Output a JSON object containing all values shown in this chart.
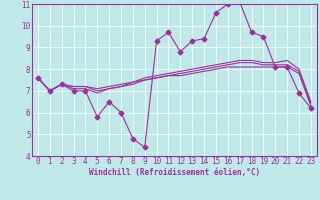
{
  "xlabel": "Windchill (Refroidissement éolien,°C)",
  "background_color": "#c0e8e8",
  "grid_color": "#ffffff",
  "line_color": "#993399",
  "spine_color": "#993399",
  "tick_color": "#993399",
  "xlim": [
    -0.5,
    23.5
  ],
  "ylim": [
    4,
    11
  ],
  "yticks": [
    4,
    5,
    6,
    7,
    8,
    9,
    10,
    11
  ],
  "xticks": [
    0,
    1,
    2,
    3,
    4,
    5,
    6,
    7,
    8,
    9,
    10,
    11,
    12,
    13,
    14,
    15,
    16,
    17,
    18,
    19,
    20,
    21,
    22,
    23
  ],
  "series": [
    [
      7.6,
      7.0,
      7.3,
      7.0,
      7.0,
      5.8,
      6.5,
      6.0,
      4.8,
      4.4,
      9.3,
      9.7,
      8.8,
      9.3,
      9.4,
      10.6,
      11.0,
      11.1,
      9.7,
      9.5,
      8.1,
      8.1,
      6.9,
      6.2
    ],
    [
      7.6,
      7.0,
      7.3,
      7.1,
      7.1,
      6.9,
      7.1,
      7.2,
      7.3,
      7.5,
      7.6,
      7.7,
      7.7,
      7.8,
      7.9,
      8.0,
      8.1,
      8.1,
      8.1,
      8.1,
      8.1,
      8.1,
      7.8,
      6.3
    ],
    [
      7.6,
      7.0,
      7.3,
      7.2,
      7.2,
      7.0,
      7.1,
      7.2,
      7.4,
      7.5,
      7.6,
      7.7,
      7.8,
      7.9,
      8.0,
      8.1,
      8.2,
      8.3,
      8.3,
      8.2,
      8.2,
      8.2,
      7.9,
      6.4
    ],
    [
      7.6,
      7.0,
      7.3,
      7.2,
      7.2,
      7.1,
      7.2,
      7.3,
      7.4,
      7.6,
      7.7,
      7.8,
      7.9,
      8.0,
      8.1,
      8.2,
      8.3,
      8.4,
      8.4,
      8.3,
      8.3,
      8.4,
      8.0,
      6.5
    ]
  ],
  "marker": "D",
  "markersize": 2.5,
  "linewidth": 0.8,
  "tick_fontsize": 5.5,
  "xlabel_fontsize": 5.5
}
